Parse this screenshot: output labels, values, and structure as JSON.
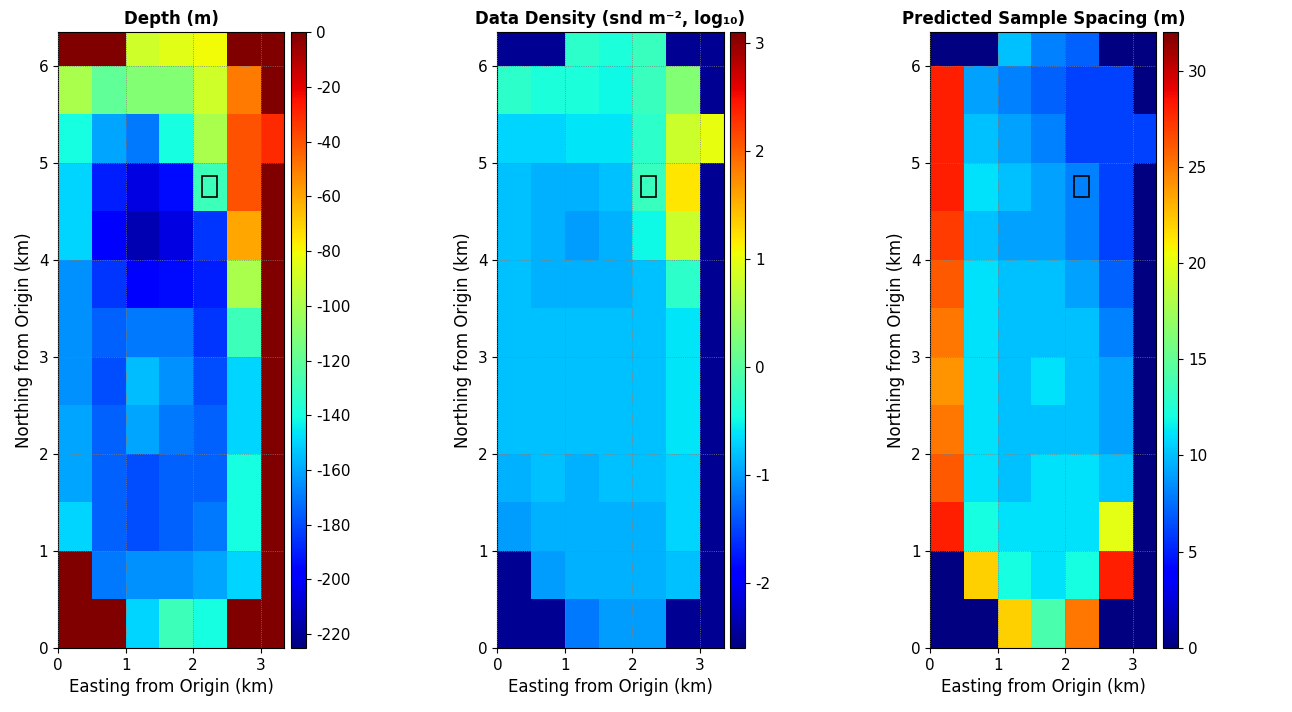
{
  "chart_data": [
    {
      "type": "heatmap",
      "title": "Depth (m)",
      "x_label": "Easting from Origin (km)",
      "y_label": "Northing from Origin (km)",
      "xlim": [
        0,
        3.35
      ],
      "ylim": [
        0,
        6.35
      ],
      "xticks": [
        0,
        1,
        2,
        3
      ],
      "yticks": [
        0,
        1,
        2,
        3,
        4,
        5,
        6
      ],
      "grid": true,
      "x_edges": [
        0,
        0.5,
        1,
        1.5,
        2,
        2.5,
        3,
        3.5
      ],
      "y_edges": [
        0,
        0.5,
        1,
        1.5,
        2,
        2.5,
        3,
        3.5,
        4,
        4.5,
        5,
        5.5,
        6,
        6.5
      ],
      "cells": [
        [
          0,
          0,
          -150,
          -130,
          -140,
          0,
          0
        ],
        [
          0,
          -170,
          -165,
          -165,
          -160,
          -150,
          0
        ],
        [
          -150,
          -175,
          -180,
          -175,
          -170,
          -140,
          0
        ],
        [
          -160,
          -175,
          -180,
          -175,
          -175,
          -140,
          0
        ],
        [
          -160,
          -175,
          -160,
          -170,
          -175,
          -150,
          0
        ],
        [
          -165,
          -180,
          -155,
          -165,
          -180,
          -150,
          0
        ],
        [
          -165,
          -175,
          -170,
          -170,
          -185,
          -130,
          0
        ],
        [
          -165,
          -185,
          -200,
          -195,
          -190,
          -100,
          0
        ],
        [
          -150,
          -200,
          -215,
          -205,
          -185,
          -60,
          0
        ],
        [
          -150,
          -190,
          -205,
          -195,
          -130,
          -40,
          0
        ],
        [
          -140,
          -160,
          -170,
          -140,
          -100,
          -40,
          -30
        ],
        [
          -100,
          -120,
          -110,
          -110,
          -90,
          -50,
          0
        ],
        [
          0,
          0,
          -90,
          -85,
          -80,
          0,
          0
        ]
      ],
      "colorbar": {
        "range": [
          -225,
          0
        ],
        "ticks": [
          0,
          -20,
          -40,
          -60,
          -80,
          -100,
          -120,
          -140,
          -160,
          -180,
          -200,
          -220
        ]
      },
      "highlight_box": {
        "x": [
          2.13,
          2.35
        ],
        "y": [
          4.65,
          4.87
        ]
      }
    },
    {
      "type": "heatmap",
      "title": "Data Density (snd m⁻², log₁₀)",
      "x_label": "Easting from Origin (km)",
      "y_label": "Northing from Origin (km)",
      "xlim": [
        0,
        3.35
      ],
      "ylim": [
        0,
        6.35
      ],
      "xticks": [
        0,
        1,
        2,
        3
      ],
      "yticks": [
        0,
        1,
        2,
        3,
        4,
        5,
        6
      ],
      "grid": true,
      "x_edges": [
        0,
        0.5,
        1,
        1.5,
        2,
        2.5,
        3,
        3.5
      ],
      "y_edges": [
        0,
        0.5,
        1,
        1.5,
        2,
        2.5,
        3,
        3.5,
        4,
        4.5,
        5,
        5.5,
        6,
        6.5
      ],
      "cells": [
        [
          -2.5,
          -2.5,
          -1.2,
          -1.0,
          -1.0,
          -2.5,
          -2.5
        ],
        [
          -2.5,
          -1.0,
          -0.9,
          -0.9,
          -0.9,
          -0.8,
          -2.5
        ],
        [
          -1.0,
          -0.9,
          -0.9,
          -0.9,
          -0.9,
          -0.7,
          -2.5
        ],
        [
          -0.9,
          -0.8,
          -0.9,
          -0.8,
          -0.8,
          -0.7,
          -2.5
        ],
        [
          -0.8,
          -0.8,
          -0.8,
          -0.8,
          -0.8,
          -0.6,
          -2.5
        ],
        [
          -0.8,
          -0.8,
          -0.8,
          -0.8,
          -0.8,
          -0.6,
          -2.5
        ],
        [
          -0.8,
          -0.8,
          -0.8,
          -0.8,
          -0.8,
          -0.6,
          -2.5
        ],
        [
          -0.8,
          -0.9,
          -0.9,
          -0.9,
          -0.8,
          -0.3,
          -2.5
        ],
        [
          -0.8,
          -0.9,
          -1.0,
          -0.9,
          -0.5,
          0.8,
          -2.5
        ],
        [
          -0.8,
          -0.9,
          -0.9,
          -0.8,
          -0.2,
          1.2,
          -2.5
        ],
        [
          -0.7,
          -0.7,
          -0.6,
          -0.6,
          -0.3,
          0.8,
          1.0
        ],
        [
          -0.3,
          -0.4,
          -0.4,
          -0.5,
          -0.2,
          0.3,
          -2.5
        ],
        [
          -2.5,
          -2.5,
          -0.3,
          -0.4,
          -0.2,
          -2.5,
          -2.5
        ]
      ],
      "colorbar": {
        "range": [
          -2.6,
          3.1
        ],
        "ticks": [
          -2,
          -1,
          0,
          1,
          2,
          3
        ]
      },
      "highlight_box": {
        "x": [
          2.13,
          2.35
        ],
        "y": [
          4.65,
          4.87
        ]
      }
    },
    {
      "type": "heatmap",
      "title": "Predicted Sample Spacing (m)",
      "x_label": "Easting from Origin (km)",
      "y_label": "Northing from Origin (km)",
      "xlim": [
        0,
        3.35
      ],
      "ylim": [
        0,
        6.35
      ],
      "xticks": [
        0,
        1,
        2,
        3
      ],
      "yticks": [
        0,
        1,
        2,
        3,
        4,
        5,
        6
      ],
      "grid": true,
      "x_edges": [
        0,
        0.5,
        1,
        1.5,
        2,
        2.5,
        3,
        3.5
      ],
      "y_edges": [
        0,
        0.5,
        1,
        1.5,
        2,
        2.5,
        3,
        3.5,
        4,
        4.5,
        5,
        5.5,
        6,
        6.5
      ],
      "cells": [
        [
          0,
          0,
          22,
          14,
          25,
          0,
          0
        ],
        [
          0,
          22,
          12,
          11,
          12,
          28,
          0
        ],
        [
          28,
          12,
          11,
          11,
          11,
          20,
          0
        ],
        [
          26,
          11,
          10,
          11,
          11,
          10,
          0
        ],
        [
          25,
          11,
          10,
          10,
          10,
          9,
          0
        ],
        [
          24,
          11,
          10,
          11,
          10,
          9,
          0
        ],
        [
          25,
          11,
          10,
          10,
          10,
          8,
          0
        ],
        [
          26,
          11,
          10,
          10,
          9,
          7,
          0
        ],
        [
          27,
          10,
          9,
          9,
          8,
          6,
          0
        ],
        [
          28,
          11,
          10,
          9,
          8,
          6,
          0
        ],
        [
          28,
          10,
          9,
          8,
          6,
          6,
          6
        ],
        [
          28,
          9,
          8,
          7,
          6,
          6,
          0
        ],
        [
          0,
          0,
          10,
          8,
          7,
          0,
          0
        ]
      ],
      "colorbar": {
        "range": [
          0,
          32
        ],
        "ticks": [
          0,
          5,
          10,
          15,
          20,
          25,
          30
        ]
      },
      "highlight_box": {
        "x": [
          2.13,
          2.35
        ],
        "y": [
          4.65,
          4.87
        ]
      }
    }
  ]
}
